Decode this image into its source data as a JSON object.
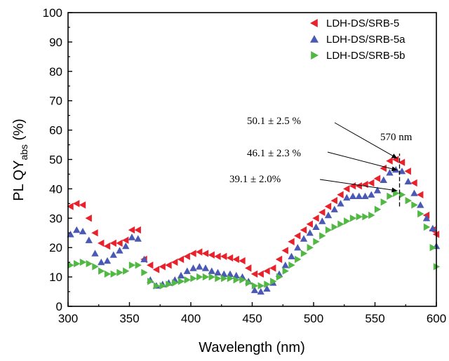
{
  "chart_data": {
    "type": "scatter",
    "xlabel": "Wavelength (nm)",
    "ylabel": {
      "main": "PL QY",
      "sub": "abs",
      "unit": " (%)"
    },
    "xlim": [
      300,
      600
    ],
    "ylim": [
      0,
      100
    ],
    "xticks": [
      300,
      350,
      400,
      450,
      500,
      550,
      600
    ],
    "yticks": [
      0,
      10,
      20,
      30,
      40,
      50,
      60,
      70,
      80,
      90,
      100
    ],
    "grid": false,
    "legend_position": "top-right",
    "series": [
      {
        "name": "LDH-DS/SRB-5",
        "color": "#e8212b",
        "marker": "triangle-left",
        "x": [
          302,
          307,
          312,
          317,
          322,
          327,
          332,
          337,
          342,
          347,
          352,
          357,
          362,
          367,
          372,
          377,
          382,
          387,
          392,
          397,
          402,
          407,
          412,
          417,
          422,
          427,
          432,
          437,
          442,
          447,
          452,
          457,
          462,
          467,
          472,
          477,
          482,
          487,
          492,
          497,
          502,
          507,
          512,
          517,
          522,
          527,
          532,
          537,
          542,
          547,
          552,
          557,
          562,
          567,
          572,
          577,
          582,
          587,
          592,
          597,
          600
        ],
        "y": [
          34,
          35,
          34.5,
          30,
          25,
          21.5,
          20.5,
          21.5,
          21.5,
          22.5,
          26,
          26,
          16,
          14,
          12.5,
          13.5,
          14,
          15,
          16,
          17,
          18,
          18.5,
          18,
          17.5,
          17,
          17,
          16.5,
          16,
          15.5,
          13,
          11,
          11,
          12,
          13,
          16,
          19,
          22,
          24,
          26,
          28,
          30,
          32,
          34,
          36,
          38,
          40,
          41,
          41,
          41.5,
          42,
          43.5,
          47,
          49.5,
          50,
          49,
          46,
          42,
          38,
          31,
          26,
          24.5
        ]
      },
      {
        "name": "LDH-DS/SRB-5a",
        "color": "#4a5ab4",
        "marker": "triangle-up",
        "x": [
          302,
          307,
          312,
          317,
          322,
          327,
          332,
          337,
          342,
          347,
          352,
          357,
          362,
          367,
          372,
          377,
          382,
          387,
          392,
          397,
          402,
          407,
          412,
          417,
          422,
          427,
          432,
          437,
          442,
          447,
          452,
          457,
          462,
          467,
          472,
          477,
          482,
          487,
          492,
          497,
          502,
          507,
          512,
          517,
          522,
          527,
          532,
          537,
          542,
          547,
          552,
          557,
          562,
          567,
          572,
          577,
          582,
          587,
          592,
          597,
          600
        ],
        "y": [
          24.5,
          26,
          25.5,
          22.5,
          18,
          15,
          15.5,
          17.5,
          19,
          20.5,
          23.5,
          23,
          16,
          9,
          7,
          7.5,
          8,
          9,
          10.5,
          12,
          13,
          13.5,
          13,
          12,
          11.5,
          11,
          11,
          10.5,
          10,
          8.5,
          5.5,
          5,
          6,
          8,
          11,
          14,
          17,
          20,
          23,
          25,
          27,
          29,
          31,
          33,
          35,
          37,
          37.5,
          37.5,
          37.5,
          38,
          39.5,
          43,
          45.5,
          46.5,
          46,
          42.5,
          38.5,
          34.5,
          30,
          26.5,
          20.5
        ]
      },
      {
        "name": "LDH-DS/SRB-5b",
        "color": "#52b844",
        "marker": "triangle-right",
        "x": [
          302,
          307,
          312,
          317,
          322,
          327,
          332,
          337,
          342,
          347,
          352,
          357,
          362,
          367,
          372,
          377,
          382,
          387,
          392,
          397,
          402,
          407,
          412,
          417,
          422,
          427,
          432,
          437,
          442,
          447,
          452,
          457,
          462,
          467,
          472,
          477,
          482,
          487,
          492,
          497,
          502,
          507,
          512,
          517,
          522,
          527,
          532,
          537,
          542,
          547,
          552,
          557,
          562,
          567,
          572,
          577,
          582,
          587,
          592,
          597,
          600
        ],
        "y": [
          14,
          14.5,
          15,
          14.5,
          13.5,
          12,
          11,
          11,
          11.5,
          12,
          14,
          14,
          11.5,
          8.5,
          7,
          7,
          7.5,
          8,
          8.5,
          9,
          9.5,
          10,
          10,
          10,
          9.5,
          9.5,
          9.5,
          9,
          9,
          8,
          7,
          7,
          7.5,
          8.5,
          10,
          12,
          14,
          16,
          18,
          20,
          22,
          24,
          26,
          27,
          28,
          29,
          30,
          30.5,
          30.5,
          31,
          33,
          35.5,
          37.5,
          38.5,
          38,
          36,
          34.5,
          31.5,
          27,
          20,
          13.5
        ]
      }
    ],
    "marker_line": {
      "x": 570,
      "y0": 34,
      "y1": 52
    },
    "annotations": [
      {
        "text": "50.1 ± 2.5 %",
        "x": 570,
        "y": 50.1
      },
      {
        "text": "46.1 ± 2.3 %",
        "x": 570,
        "y": 46.1
      },
      {
        "text": "39.1 ± 2.0%",
        "x": 570,
        "y": 39.1
      },
      {
        "text": "570 nm"
      }
    ]
  }
}
